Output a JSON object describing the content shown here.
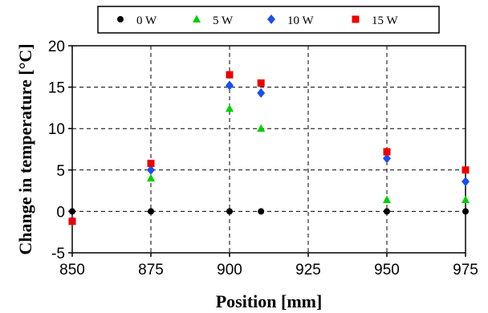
{
  "chart_data": {
    "type": "scatter",
    "xlabel": "Position [mm]",
    "ylabel": "Change in temperature [°C]",
    "xlim": [
      850,
      975
    ],
    "ylim": [
      -5,
      20
    ],
    "xticks": [
      850,
      875,
      900,
      925,
      950,
      975
    ],
    "yticks": [
      -5,
      0,
      5,
      10,
      15,
      20
    ],
    "grid": true,
    "legend_placement": "top, horizontal",
    "series": [
      {
        "name": "0 W",
        "color": "#000000",
        "marker": "circle",
        "x": [
          850,
          875,
          900,
          910,
          950,
          975
        ],
        "y": [
          0,
          0,
          0,
          0,
          0,
          0
        ]
      },
      {
        "name": "5 W",
        "color": "#00cc00",
        "marker": "triangle",
        "x": [
          850,
          875,
          900,
          910,
          950,
          975
        ],
        "y": [
          -1.2,
          4.0,
          12.4,
          10.0,
          1.4,
          1.4
        ]
      },
      {
        "name": "10 W",
        "color": "#1f4fe6",
        "marker": "diamond",
        "x": [
          850,
          875,
          900,
          910,
          950,
          975
        ],
        "y": [
          -1.1,
          5.0,
          15.2,
          14.3,
          6.4,
          3.6
        ]
      },
      {
        "name": "15 W",
        "color": "#e80000",
        "marker": "square",
        "x": [
          850,
          875,
          900,
          910,
          950,
          975
        ],
        "y": [
          -1.2,
          5.8,
          16.5,
          15.5,
          7.2,
          5.0
        ]
      }
    ]
  }
}
